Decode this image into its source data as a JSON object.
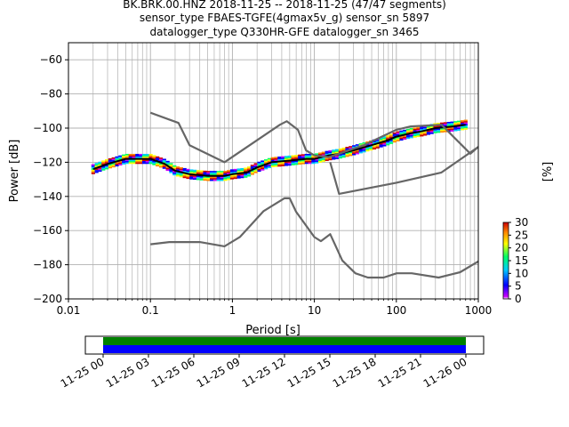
{
  "title_lines": [
    "BK.BRK.00.HNZ   2018-11-25 -- 2018-11-25  (47/47 segments)",
    "sensor_type FBAES-TGFE(4gmax5v_g) sensor_sn 5897",
    "datalogger_type Q330HR-GFE datalogger_sn 3465"
  ],
  "chart_data": {
    "type": "line",
    "title": "BK.BRK.00.HNZ   2018-11-25 -- 2018-11-25  (47/47 segments)",
    "xlabel": "Period [s]",
    "ylabel": "Power [dB]",
    "xscale": "log",
    "xlim": [
      0.01,
      1000
    ],
    "ylim": [
      -200,
      -50
    ],
    "grid": true,
    "x_ticks": [
      "0.01",
      "0.1",
      "1",
      "10",
      "100",
      "1000"
    ],
    "y_ticks": [
      "-60",
      "-80",
      "-100",
      "-120",
      "-140",
      "-160",
      "-180",
      "-200"
    ],
    "series": [
      {
        "role": "mode",
        "color": "#000000",
        "x": [
          0.02,
          0.03,
          0.05,
          0.08,
          0.1,
          0.15,
          0.2,
          0.3,
          0.5,
          0.8,
          1.0,
          1.5,
          2,
          3,
          5,
          8,
          10,
          15,
          20,
          30,
          50,
          80,
          100,
          150,
          200,
          300,
          500,
          700
        ],
        "y": [
          -124,
          -121,
          -118,
          -118,
          -118,
          -121,
          -125,
          -127,
          -128,
          -128,
          -127,
          -126,
          -123,
          -120,
          -119,
          -118,
          -118,
          -116,
          -115,
          -113,
          -110,
          -107,
          -105,
          -103,
          -102,
          -100,
          -99,
          -98
        ]
      },
      {
        "role": "noise-model-high",
        "color": "#666666",
        "x": [
          0.1,
          0.22,
          0.3,
          0.8,
          3.8,
          4.6,
          6.3,
          7.9,
          10,
          15,
          20,
          40,
          100,
          150,
          355,
          800,
          1000
        ],
        "y": [
          -91,
          -97,
          -110,
          -120,
          -98,
          -96,
          -101,
          -113,
          -116,
          -117,
          -115,
          -110,
          -101,
          -99,
          -98,
          -115,
          -111
        ]
      },
      {
        "role": "noise-model-low",
        "color": "#666666",
        "x": [
          0.1,
          0.17,
          0.4,
          0.8,
          1.24,
          2.4,
          4.3,
          5,
          6,
          10,
          12,
          15.6,
          21.9,
          31.6,
          45,
          70,
          101,
          154,
          328,
          600,
          1000
        ],
        "y": [
          -168,
          -166.7,
          -166.7,
          -169.2,
          -163.7,
          -148.6,
          -141.1,
          -141.1,
          -149,
          -163.8,
          -166.2,
          -162.1,
          -177.5,
          -185,
          -187.5,
          -187.5,
          -185,
          -185,
          -187.5,
          -184.4,
          -178
        ]
      },
      {
        "role": "noise-model-mid",
        "color": "#666666",
        "x": [
          15.6,
          20,
          100,
          355,
          1000
        ],
        "y": [
          -120,
          -138.5,
          -132,
          -126,
          -111
        ]
      }
    ],
    "colorbar": {
      "label": "[%]",
      "ticks": [
        "0",
        "5",
        "10",
        "15",
        "20",
        "25",
        "30"
      ],
      "range": [
        0,
        30
      ]
    },
    "timeline": {
      "tick_labels": [
        "11-25 00",
        "11-25 03",
        "11-25 06",
        "11-25 09",
        "11-25 12",
        "11-25 15",
        "11-25 18",
        "11-25 21",
        "11-26 00"
      ],
      "coverage_colors": [
        "#008000",
        "#0000ff"
      ]
    }
  }
}
